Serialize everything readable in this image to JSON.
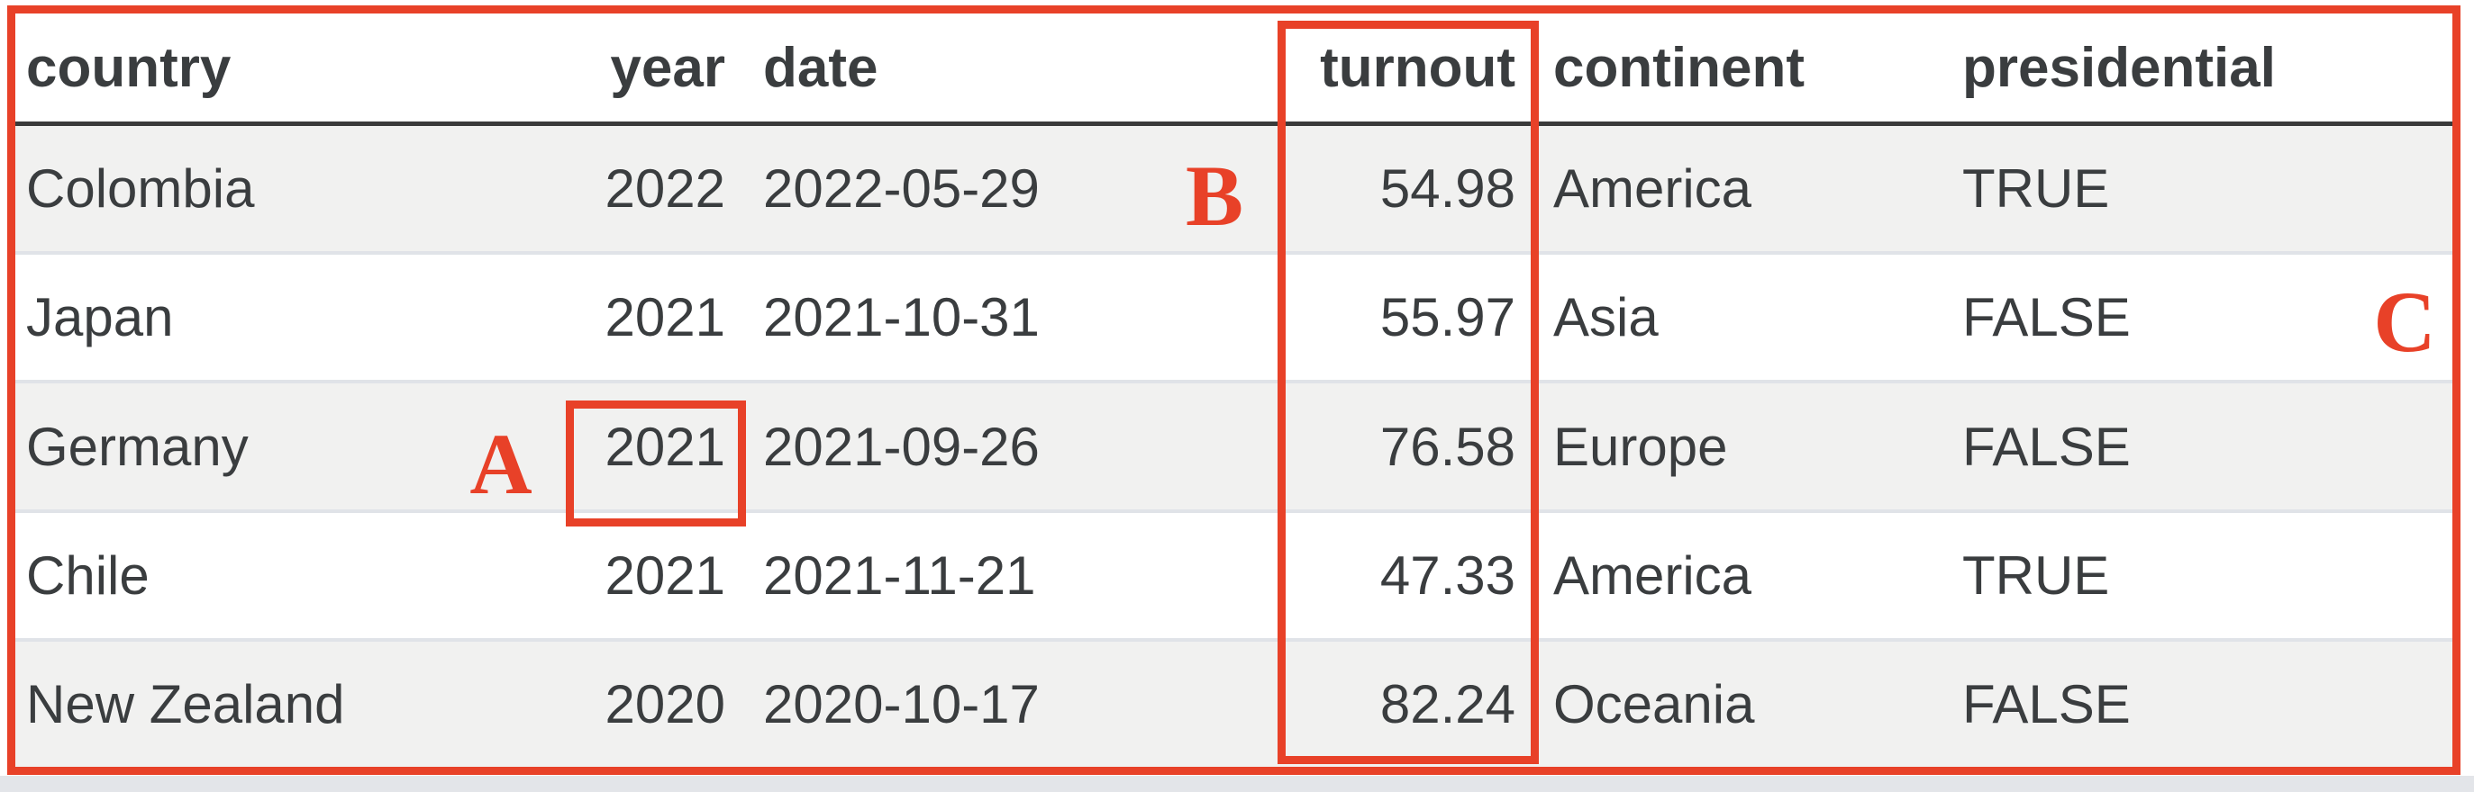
{
  "chart_data": {
    "type": "table",
    "title": "",
    "columns": [
      {
        "key": "country",
        "label": "country",
        "align": "left"
      },
      {
        "key": "year",
        "label": "year",
        "align": "right"
      },
      {
        "key": "date",
        "label": "date",
        "align": "left"
      },
      {
        "key": "turnout",
        "label": "turnout",
        "align": "right"
      },
      {
        "key": "continent",
        "label": "continent",
        "align": "left"
      },
      {
        "key": "presidential",
        "label": "presidential",
        "align": "left"
      }
    ],
    "rows": [
      {
        "country": "Colombia",
        "year": "2022",
        "date": "2022-05-29",
        "turnout": "54.98",
        "continent": "America",
        "presidential": "TRUE"
      },
      {
        "country": "Japan",
        "year": "2021",
        "date": "2021-10-31",
        "turnout": "55.97",
        "continent": "Asia",
        "presidential": "FALSE"
      },
      {
        "country": "Germany",
        "year": "2021",
        "date": "2021-09-26",
        "turnout": "76.58",
        "continent": "Europe",
        "presidential": "FALSE"
      },
      {
        "country": "Chile",
        "year": "2021",
        "date": "2021-11-21",
        "turnout": "47.33",
        "continent": "America",
        "presidential": "TRUE"
      },
      {
        "country": "New Zealand",
        "year": "2020",
        "date": "2020-10-17",
        "turnout": "82.24",
        "continent": "Oceania",
        "presidential": "FALSE"
      }
    ]
  },
  "annotations": {
    "label_a": "A",
    "label_b": "B",
    "label_c": "C",
    "box_a_target": "year cell of Germany row",
    "box_turnout_target": "turnout column"
  },
  "colors": {
    "annotation_red": "#e84128",
    "row_stripe_gray": "#f1f1f0",
    "row_separator": "#e0e3e8",
    "header_rule": "#3a3a3a",
    "text": "#3a3d3f"
  }
}
